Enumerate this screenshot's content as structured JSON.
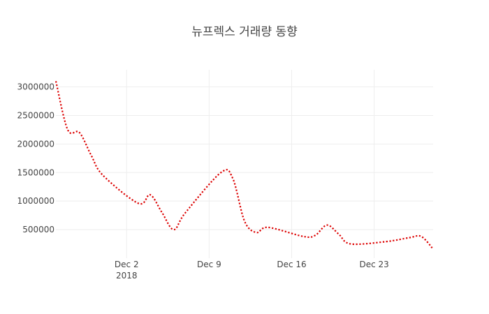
{
  "chart_data": {
    "type": "line",
    "title": "뉴프렉스 거래량 동향",
    "xlabel": "",
    "ylabel": "",
    "x": [
      "2018-11-26",
      "2018-11-27",
      "2018-11-28",
      "2018-11-29",
      "2018-11-30",
      "2018-12-03",
      "2018-12-04",
      "2018-12-05",
      "2018-12-06",
      "2018-12-07",
      "2018-12-10",
      "2018-12-11",
      "2018-12-12",
      "2018-12-13",
      "2018-12-14",
      "2018-12-17",
      "2018-12-18",
      "2018-12-19",
      "2018-12-20",
      "2018-12-21",
      "2018-12-24",
      "2018-12-26",
      "2018-12-27",
      "2018-12-28"
    ],
    "series": [
      {
        "values": [
          3100000,
          2250000,
          2200000,
          1800000,
          1450000,
          960000,
          1110000,
          800000,
          500000,
          800000,
          1500000,
          1400000,
          650000,
          450000,
          540000,
          380000,
          400000,
          580000,
          420000,
          250000,
          290000,
          360000,
          380000,
          160000
        ],
        "color": "#dd0000",
        "dash": "dot"
      }
    ],
    "ylim": [
      0,
      3300000
    ],
    "yticks": [
      "500000",
      "1000000",
      "1500000",
      "2000000",
      "2500000",
      "3000000"
    ],
    "xticks": [
      {
        "date": "2018-12-02",
        "label": "Dec 2",
        "sublabel": "2018"
      },
      {
        "date": "2018-12-09",
        "label": "Dec 9",
        "sublabel": ""
      },
      {
        "date": "2018-12-16",
        "label": "Dec 16",
        "sublabel": ""
      },
      {
        "date": "2018-12-23",
        "label": "Dec 23",
        "sublabel": ""
      }
    ],
    "grid": true,
    "legend": "none"
  }
}
